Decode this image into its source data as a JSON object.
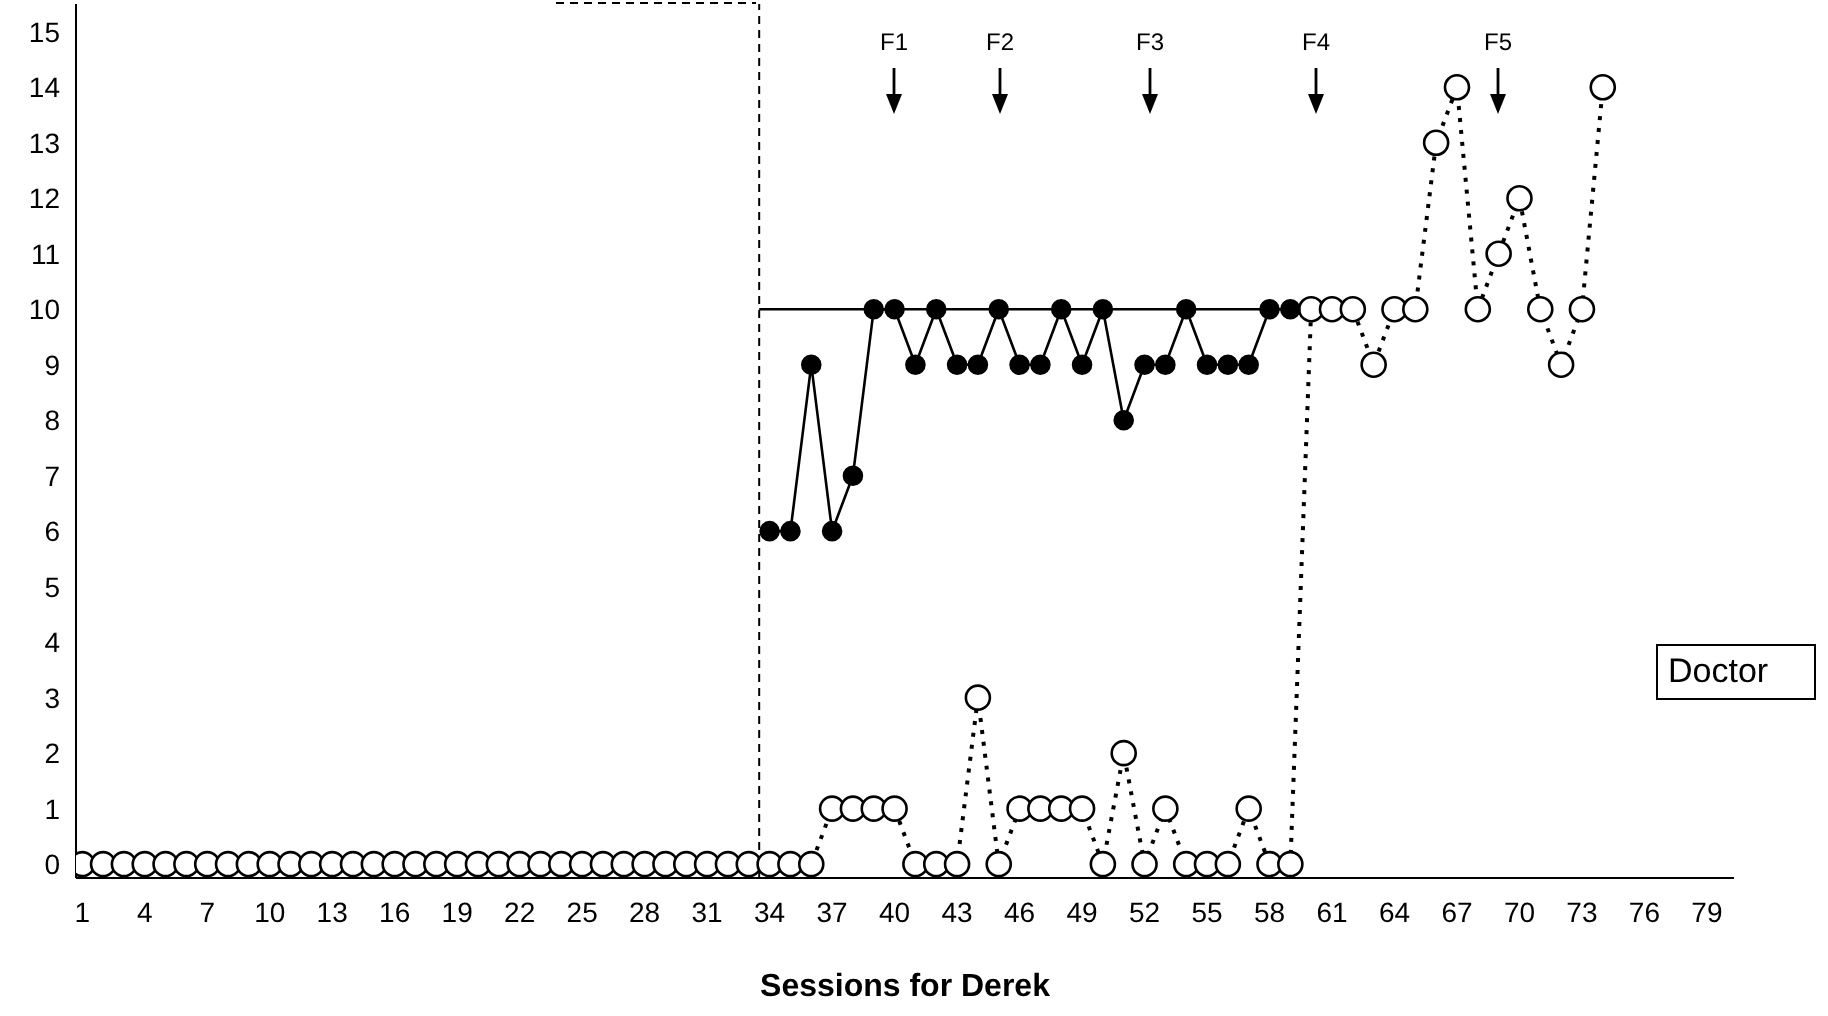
{
  "chart_data": {
    "type": "line",
    "xlabel": "Sessions for Derek",
    "xlim": [
      0.7,
      80.3
    ],
    "xticks": [
      1,
      4,
      7,
      10,
      13,
      16,
      19,
      22,
      25,
      28,
      31,
      34,
      37,
      40,
      43,
      46,
      49,
      52,
      55,
      58,
      61,
      64,
      67,
      70,
      73,
      76,
      79
    ],
    "ylim": [
      -0.25,
      15.5
    ],
    "yticks": [
      0,
      1,
      2,
      3,
      4,
      5,
      6,
      7,
      8,
      9,
      10,
      11,
      12,
      13,
      14,
      15
    ],
    "grid": false,
    "marker": "circle",
    "series": [
      {
        "color": "#000000",
        "line_style": "dotted",
        "x": [
          1,
          2,
          3,
          4,
          5,
          6,
          7,
          8,
          9,
          10,
          11,
          12,
          13,
          14,
          15,
          16,
          17,
          18,
          19,
          20,
          21,
          22,
          23,
          24,
          25,
          26,
          27,
          28,
          29,
          30,
          31,
          32,
          33,
          34,
          35,
          36,
          37,
          38,
          39,
          40,
          41,
          42,
          43,
          44,
          45,
          46,
          47,
          48,
          49,
          50,
          51,
          52,
          53,
          54,
          55,
          56,
          57,
          58,
          59,
          60,
          61,
          62,
          63,
          64,
          65,
          66,
          67,
          68,
          69,
          70,
          71,
          72,
          73,
          74
        ],
        "values": [
          0,
          0,
          0,
          0,
          0,
          0,
          0,
          0,
          0,
          0,
          0,
          0,
          0,
          0,
          0,
          0,
          0,
          0,
          0,
          0,
          0,
          0,
          0,
          0,
          0,
          0,
          0,
          0,
          0,
          0,
          0,
          0,
          0,
          0,
          0,
          0,
          1,
          1,
          1,
          1,
          0,
          0,
          0,
          3,
          0,
          1,
          1,
          1,
          1,
          0,
          2,
          0,
          1,
          0,
          0,
          0,
          1,
          0,
          0,
          10,
          10,
          10,
          9,
          10,
          10,
          13,
          14,
          10,
          11,
          12,
          10,
          9,
          10,
          14
        ]
      },
      {
        "color": "#000000",
        "line_style": "solid",
        "x": [
          34,
          35,
          36,
          37,
          38,
          39,
          40,
          41,
          42,
          43,
          44,
          45,
          46,
          47,
          48,
          49,
          50,
          51,
          52,
          53,
          54,
          55,
          56,
          57,
          58,
          59
        ],
        "values": [
          6,
          6,
          9,
          6,
          7,
          10,
          10,
          9,
          10,
          9,
          9,
          10,
          9,
          9,
          10,
          9,
          10,
          8,
          9,
          9,
          10,
          9,
          9,
          9,
          10,
          10
        ]
      },
      {
        "color": "#000000",
        "line_style": "solid",
        "marker": "none",
        "x": [
          33.5,
          60
        ],
        "values": [
          10,
          10
        ]
      }
    ],
    "ref_lines": [
      {
        "axis": "x",
        "value": 33.5,
        "line_style": "dashed",
        "color": "#000000"
      }
    ],
    "annotations": [
      "F1",
      "F2",
      "F3",
      "F4",
      "F5",
      "Doctor"
    ]
  }
}
